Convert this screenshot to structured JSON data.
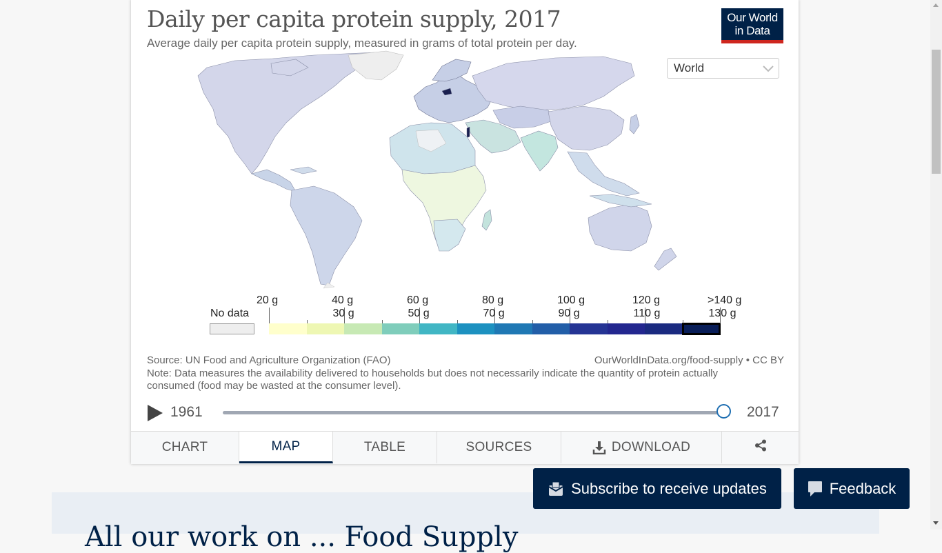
{
  "chart": {
    "title": "Daily per capita protein supply, 2017",
    "subtitle": "Average daily per capita protein supply, measured in grams of total protein per day.",
    "logo_line1": "Our World",
    "logo_line2": "in Data",
    "region_selected": "World",
    "source": "Source: UN Food and Agriculture Organization (FAO)",
    "url": "OurWorldInData.org/food-supply • CC BY",
    "note": "Note: Data measures the availability delivered to households but does not necessarily indicate the quantity of protein actually consumed (food may be wasted at the consumer level)."
  },
  "legend": {
    "no_data_label": "No data",
    "no_data_color": "#eeeeee",
    "upper_labels": [
      "20 g",
      "40 g",
      "60 g",
      "80 g",
      "100 g",
      "120 g",
      ">140 g"
    ],
    "lower_labels": [
      "30 g",
      "50 g",
      "70 g",
      "90 g",
      "110 g",
      "130 g"
    ],
    "bins": [
      {
        "color": "#ffffcc"
      },
      {
        "color": "#eef7b3"
      },
      {
        "color": "#c7e9b4"
      },
      {
        "color": "#7fcdbb"
      },
      {
        "color": "#41b6c4"
      },
      {
        "color": "#1d91c0"
      },
      {
        "color": "#1f78b4"
      },
      {
        "color": "#225ea8"
      },
      {
        "color": "#253494"
      },
      {
        "color": "#23278f"
      },
      {
        "color": "#1a2a80"
      },
      {
        "color": "#081d58"
      }
    ],
    "highlighted_bin": "130 g"
  },
  "timeline": {
    "start_year": "1961",
    "end_year": "2017",
    "position": 1.0
  },
  "tabs": [
    {
      "label": "CHART"
    },
    {
      "label": "MAP"
    },
    {
      "label": "TABLE"
    },
    {
      "label": "SOURCES"
    },
    {
      "label": "DOWNLOAD"
    }
  ],
  "active_tab": "MAP",
  "buttons": {
    "subscribe": "Subscribe to receive updates",
    "feedback": "Feedback"
  },
  "below_heading": "All our work on ... Food Supply",
  "colors": {
    "brand_navy": "#002147",
    "brand_red": "#ce261e",
    "map_default": "#d2d6e8",
    "map_dark": "#1a2050"
  },
  "icons": [
    "play-icon",
    "chevron-down-icon",
    "download-icon",
    "share-icon",
    "envelope-icon",
    "speech-bubble-icon"
  ]
}
